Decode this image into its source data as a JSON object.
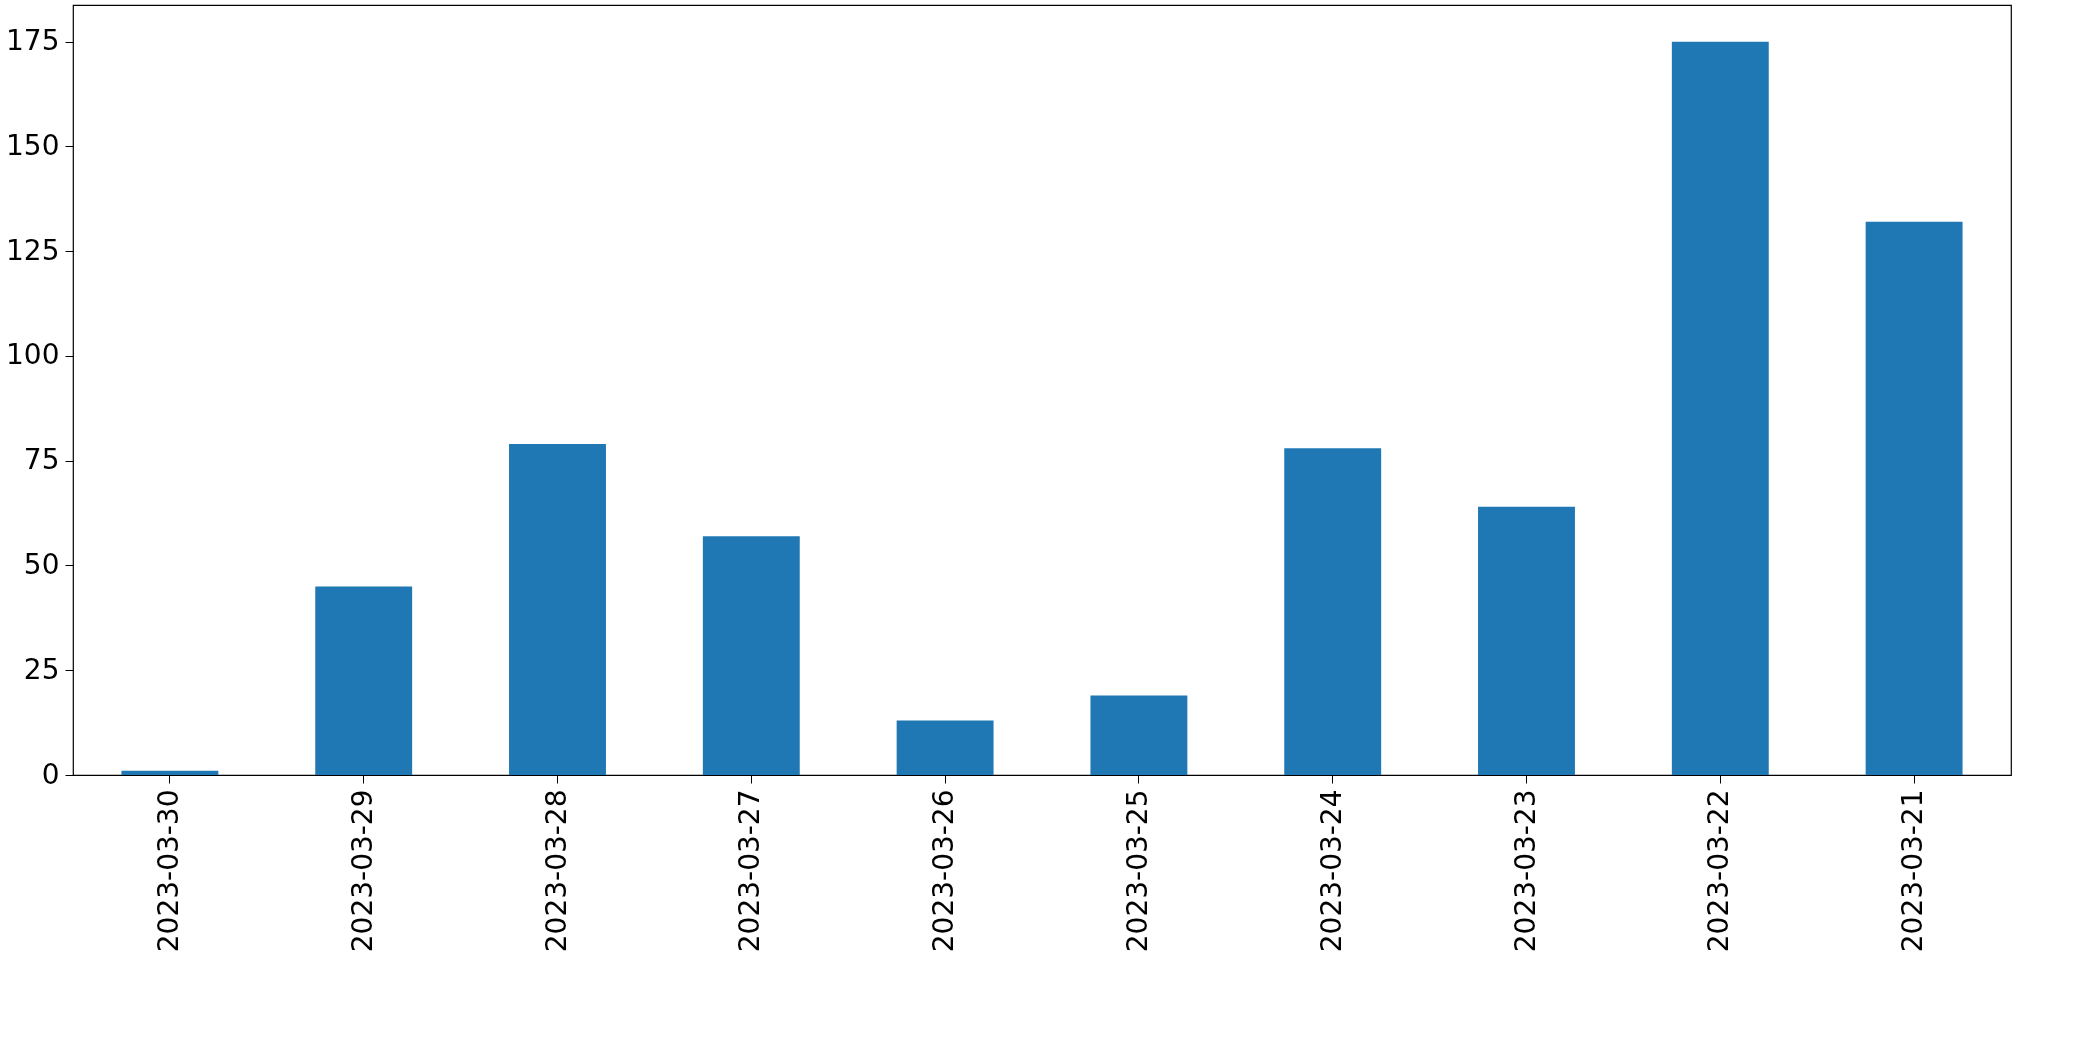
{
  "chart_data": {
    "type": "bar",
    "categories": [
      "2023-03-30",
      "2023-03-29",
      "2023-03-28",
      "2023-03-27",
      "2023-03-26",
      "2023-03-25",
      "2023-03-24",
      "2023-03-23",
      "2023-03-22",
      "2023-03-21"
    ],
    "values": [
      1,
      45,
      79,
      57,
      13,
      19,
      78,
      64,
      175,
      132
    ],
    "color": "#1f77b4",
    "ylim": [
      0,
      183.75
    ],
    "yticks": [
      0,
      25,
      50,
      75,
      100,
      125,
      150,
      175
    ],
    "grid": false
  }
}
